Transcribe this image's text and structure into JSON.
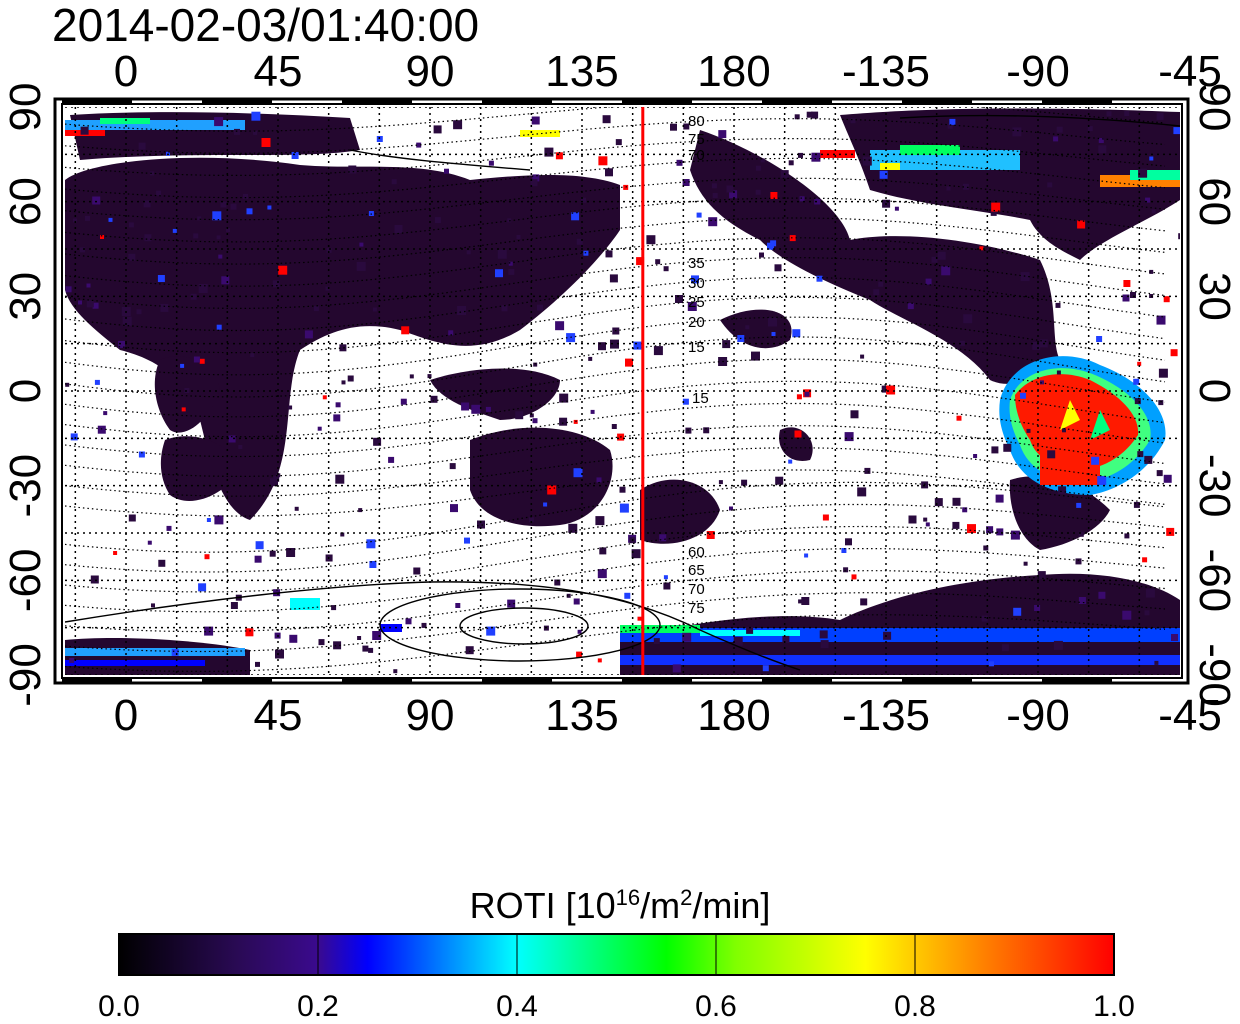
{
  "title": "2014-02-03/01:40:00",
  "map": {
    "lon_ticks": [
      "0",
      "45",
      "90",
      "135",
      "180",
      "-135",
      "-90",
      "-45"
    ],
    "lat_ticks": [
      "90",
      "60",
      "30",
      "0",
      "-30",
      "-60",
      "-90"
    ],
    "terminator_lon": 153,
    "contour_labels": [
      "80",
      "75",
      "70",
      "35",
      "30",
      "25",
      "20",
      "15",
      "15",
      "60",
      "65",
      "70",
      "75"
    ]
  },
  "colorbar": {
    "title_main": "ROTI  [10",
    "title_sup1": "16",
    "title_mid": "/m",
    "title_sup2": "2",
    "title_end": "/min]",
    "ticks": [
      "0.0",
      "0.2",
      "0.4",
      "0.6",
      "0.8",
      "1.0"
    ],
    "colors": [
      "#000000",
      "#3a0a6e",
      "#0000ff",
      "#00ffff",
      "#00ff00",
      "#ffff00",
      "#ff8000",
      "#ff0000"
    ]
  }
}
